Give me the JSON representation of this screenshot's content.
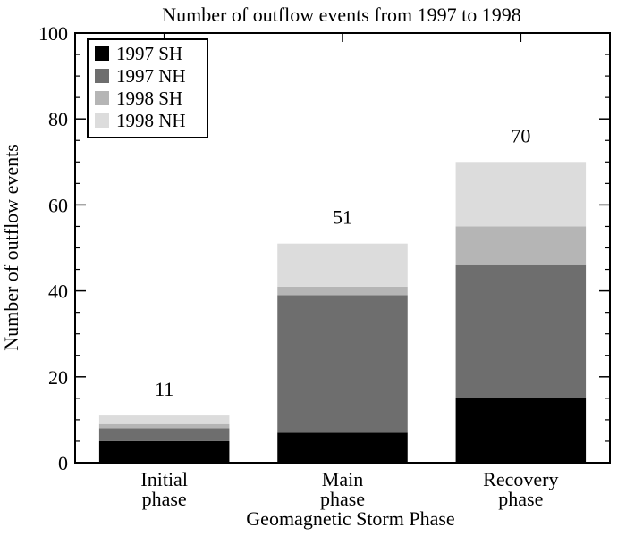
{
  "chart_data": {
    "type": "bar",
    "stacked": true,
    "title": "Number of outflow events from 1997 to 1998",
    "xlabel": "Geomagnetic Storm Phase",
    "ylabel": "Number of outflow events",
    "ylim": [
      0,
      100
    ],
    "yticks": [
      "0",
      "20",
      "40",
      "60",
      "80",
      "100"
    ],
    "categories": [
      [
        "Initial",
        "phase"
      ],
      [
        "Main",
        "phase"
      ],
      [
        "Recovery",
        "phase"
      ]
    ],
    "series": [
      {
        "name": "1997 SH",
        "color": "#000000",
        "values": [
          5,
          7,
          15
        ]
      },
      {
        "name": "1997 NH",
        "color": "#6e6e6e",
        "values": [
          3,
          32,
          31
        ]
      },
      {
        "name": "1998 SH",
        "color": "#b5b5b5",
        "values": [
          1,
          2,
          9
        ]
      },
      {
        "name": "1998 NH",
        "color": "#dcdcdc",
        "values": [
          2,
          10,
          15
        ]
      }
    ],
    "totals": [
      "11",
      "51",
      "70"
    ],
    "legend_position": "top-left",
    "grid": false
  }
}
